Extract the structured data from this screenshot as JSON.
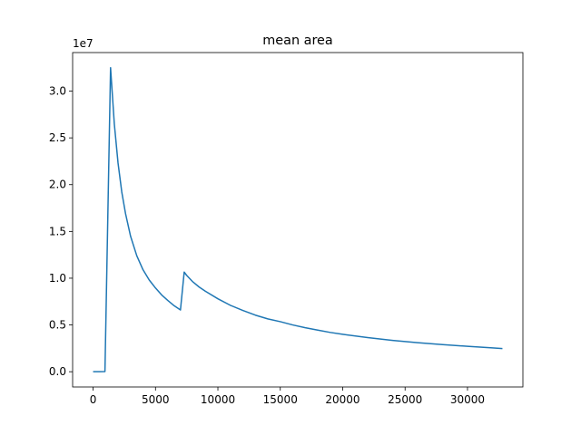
{
  "chart_data": {
    "type": "line",
    "title": "mean area",
    "xlabel": "",
    "ylabel": "",
    "y_offset_label": "1e7",
    "xlim": [
      -1640,
      34440
    ],
    "ylim": [
      -1.63,
      34.12
    ],
    "x_ticks": [
      0,
      5000,
      10000,
      15000,
      20000,
      25000,
      30000
    ],
    "x_tick_labels": [
      "0",
      "5000",
      "10000",
      "15000",
      "20000",
      "25000",
      "30000"
    ],
    "y_ticks": [
      0,
      5,
      10,
      15,
      20,
      25,
      30
    ],
    "y_tick_labels": [
      "0.0",
      "0.5",
      "1.0",
      "1.5",
      "2.0",
      "2.5",
      "3.0"
    ],
    "grid": false,
    "series_color": "#1f77b4",
    "series": [
      {
        "x": [
          0,
          500,
          950,
          1400,
          1700,
          2000,
          2300,
          2600,
          3000,
          3500,
          4000,
          4500,
          5000,
          5500,
          6000,
          6500,
          7000,
          7300,
          7500,
          8000,
          8500,
          9000,
          10000,
          11000,
          12000,
          13000,
          14000,
          15000,
          16000,
          17000,
          18000,
          19000,
          20000,
          22000,
          24000,
          26000,
          28000,
          30000,
          32000,
          32800
        ],
        "y": [
          0,
          0,
          0.02,
          32.5,
          26.5,
          22.3,
          19.2,
          16.9,
          14.5,
          12.4,
          10.9,
          9.8,
          8.95,
          8.2,
          7.6,
          7.05,
          6.6,
          10.65,
          10.3,
          9.6,
          9.05,
          8.6,
          7.8,
          7.1,
          6.55,
          6.05,
          5.65,
          5.35,
          5.0,
          4.7,
          4.45,
          4.2,
          4.0,
          3.65,
          3.35,
          3.1,
          2.9,
          2.72,
          2.55,
          2.48
        ]
      }
    ]
  }
}
